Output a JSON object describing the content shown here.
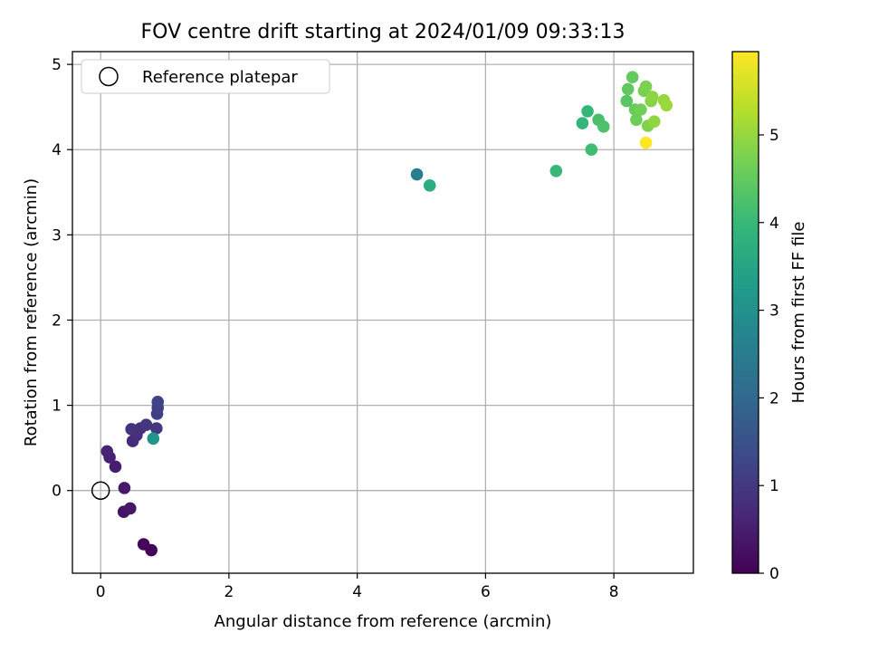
{
  "chart_data": {
    "type": "scatter",
    "title": "FOV centre drift starting at 2024/01/09 09:33:13",
    "xlabel": "Angular distance from reference (arcmin)",
    "ylabel": "Rotation from reference (arcmin)",
    "xlim": [
      -0.44,
      9.24
    ],
    "ylim": [
      -0.97,
      5.15
    ],
    "xticks": [
      0,
      2,
      4,
      6,
      8
    ],
    "xtick_labels": [
      "0",
      "2",
      "4",
      "6",
      "8"
    ],
    "yticks": [
      0,
      1,
      2,
      3,
      4,
      5
    ],
    "ytick_labels": [
      "0",
      "1",
      "2",
      "3",
      "4",
      "5"
    ],
    "grid": true,
    "legend_position": "top-left",
    "legend": [
      {
        "label": "Reference platepar",
        "marker": "hollow-circle"
      }
    ],
    "reference_point": {
      "x": 0,
      "y": 0,
      "color": "#000000"
    },
    "colorbar": {
      "label": "Hours from first FF file",
      "range": [
        0,
        5.95
      ],
      "ticks": [
        0,
        1,
        2,
        3,
        4,
        5
      ],
      "tick_labels": [
        "0",
        "1",
        "2",
        "3",
        "4",
        "5"
      ],
      "colormap": "viridis",
      "colormap_stops": [
        "#440154",
        "#482878",
        "#3e4989",
        "#31688e",
        "#26828e",
        "#1f9e89",
        "#35b779",
        "#6ece58",
        "#b5de2b",
        "#fde725"
      ]
    },
    "points": [
      {
        "x": 0.79,
        "y": -0.7,
        "hours": 0.05
      },
      {
        "x": 0.67,
        "y": -0.63,
        "hours": 0.1
      },
      {
        "x": 0.36,
        "y": -0.25,
        "hours": 0.3
      },
      {
        "x": 0.46,
        "y": -0.21,
        "hours": 0.35
      },
      {
        "x": 0.37,
        "y": 0.03,
        "hours": 0.4
      },
      {
        "x": 0.23,
        "y": 0.28,
        "hours": 0.5
      },
      {
        "x": 0.14,
        "y": 0.39,
        "hours": 0.55
      },
      {
        "x": 0.1,
        "y": 0.46,
        "hours": 0.6
      },
      {
        "x": 0.5,
        "y": 0.58,
        "hours": 0.7
      },
      {
        "x": 0.56,
        "y": 0.65,
        "hours": 0.8
      },
      {
        "x": 0.62,
        "y": 0.73,
        "hours": 0.85
      },
      {
        "x": 0.48,
        "y": 0.72,
        "hours": 0.9
      },
      {
        "x": 0.71,
        "y": 0.77,
        "hours": 0.95
      },
      {
        "x": 0.87,
        "y": 0.73,
        "hours": 1.0
      },
      {
        "x": 0.88,
        "y": 0.9,
        "hours": 1.1
      },
      {
        "x": 0.89,
        "y": 0.97,
        "hours": 1.15
      },
      {
        "x": 0.89,
        "y": 1.04,
        "hours": 1.2
      },
      {
        "x": 0.82,
        "y": 0.61,
        "hours": 3.1
      },
      {
        "x": 4.93,
        "y": 3.71,
        "hours": 2.55
      },
      {
        "x": 5.13,
        "y": 3.58,
        "hours": 3.7
      },
      {
        "x": 7.1,
        "y": 3.75,
        "hours": 4.0
      },
      {
        "x": 7.51,
        "y": 4.31,
        "hours": 3.9
      },
      {
        "x": 7.59,
        "y": 4.45,
        "hours": 3.95
      },
      {
        "x": 7.65,
        "y": 4.0,
        "hours": 4.1
      },
      {
        "x": 7.76,
        "y": 4.35,
        "hours": 4.2
      },
      {
        "x": 7.84,
        "y": 4.27,
        "hours": 4.25
      },
      {
        "x": 8.2,
        "y": 4.57,
        "hours": 4.4
      },
      {
        "x": 8.22,
        "y": 4.71,
        "hours": 4.45
      },
      {
        "x": 8.29,
        "y": 4.85,
        "hours": 4.5
      },
      {
        "x": 8.33,
        "y": 4.47,
        "hours": 4.55
      },
      {
        "x": 8.35,
        "y": 4.35,
        "hours": 4.6
      },
      {
        "x": 8.42,
        "y": 4.47,
        "hours": 4.65
      },
      {
        "x": 8.47,
        "y": 4.69,
        "hours": 4.7
      },
      {
        "x": 8.5,
        "y": 4.74,
        "hours": 4.75
      },
      {
        "x": 8.53,
        "y": 4.28,
        "hours": 4.8
      },
      {
        "x": 8.58,
        "y": 4.57,
        "hours": 4.85
      },
      {
        "x": 8.6,
        "y": 4.62,
        "hours": 4.9
      },
      {
        "x": 8.63,
        "y": 4.33,
        "hours": 4.95
      },
      {
        "x": 8.78,
        "y": 4.58,
        "hours": 5.0
      },
      {
        "x": 8.82,
        "y": 4.52,
        "hours": 5.05
      },
      {
        "x": 8.5,
        "y": 4.08,
        "hours": 5.95
      }
    ]
  }
}
